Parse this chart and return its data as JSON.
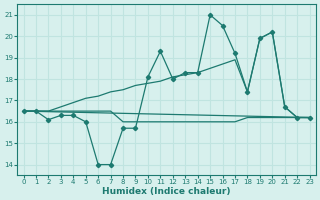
{
  "title": "",
  "xlabel": "Humidex (Indice chaleur)",
  "ylabel": "",
  "bg_color": "#d7f0ed",
  "line_color": "#1d7a70",
  "grid_color": "#c0e4e0",
  "xlim": [
    -0.5,
    23.5
  ],
  "ylim": [
    13.5,
    21.5
  ],
  "xticks": [
    0,
    1,
    2,
    3,
    4,
    5,
    6,
    7,
    8,
    9,
    10,
    11,
    12,
    13,
    14,
    15,
    16,
    17,
    18,
    19,
    20,
    21,
    22,
    23
  ],
  "yticks": [
    14,
    15,
    16,
    17,
    18,
    19,
    20,
    21
  ],
  "line1_x": [
    0,
    1,
    2,
    3,
    4,
    5,
    6,
    7,
    8,
    9,
    10,
    11,
    12,
    13,
    14,
    15,
    16,
    17,
    18,
    19,
    20,
    21,
    22,
    23
  ],
  "line1_y": [
    16.5,
    16.5,
    16.1,
    16.3,
    16.3,
    16.0,
    14.0,
    14.0,
    15.7,
    15.7,
    18.1,
    19.3,
    18.0,
    18.3,
    18.3,
    21.0,
    20.5,
    19.2,
    17.4,
    19.9,
    20.2,
    16.7,
    16.2,
    16.2
  ],
  "line2_x": [
    0,
    1,
    2,
    3,
    4,
    5,
    6,
    7,
    8,
    9,
    10,
    11,
    12,
    13,
    14,
    15,
    16,
    17,
    18,
    19,
    20,
    21,
    22,
    23
  ],
  "line2_y": [
    16.5,
    16.5,
    16.5,
    16.7,
    16.9,
    17.1,
    17.2,
    17.4,
    17.5,
    17.7,
    17.8,
    17.9,
    18.1,
    18.2,
    18.3,
    18.5,
    18.7,
    18.9,
    17.4,
    19.9,
    20.2,
    16.7,
    16.2,
    16.2
  ],
  "line3_x": [
    0,
    1,
    2,
    3,
    4,
    5,
    6,
    7,
    8,
    9,
    10,
    11,
    12,
    13,
    14,
    15,
    16,
    17,
    18,
    19,
    20,
    21,
    22,
    23
  ],
  "line3_y": [
    16.5,
    16.5,
    16.5,
    16.5,
    16.5,
    16.5,
    16.5,
    16.5,
    16.0,
    16.0,
    16.0,
    16.0,
    16.0,
    16.0,
    16.0,
    16.0,
    16.0,
    16.0,
    16.2,
    16.2,
    16.2,
    16.2,
    16.2,
    16.2
  ],
  "line4_x": [
    0,
    23
  ],
  "line4_y": [
    16.5,
    16.2
  ]
}
